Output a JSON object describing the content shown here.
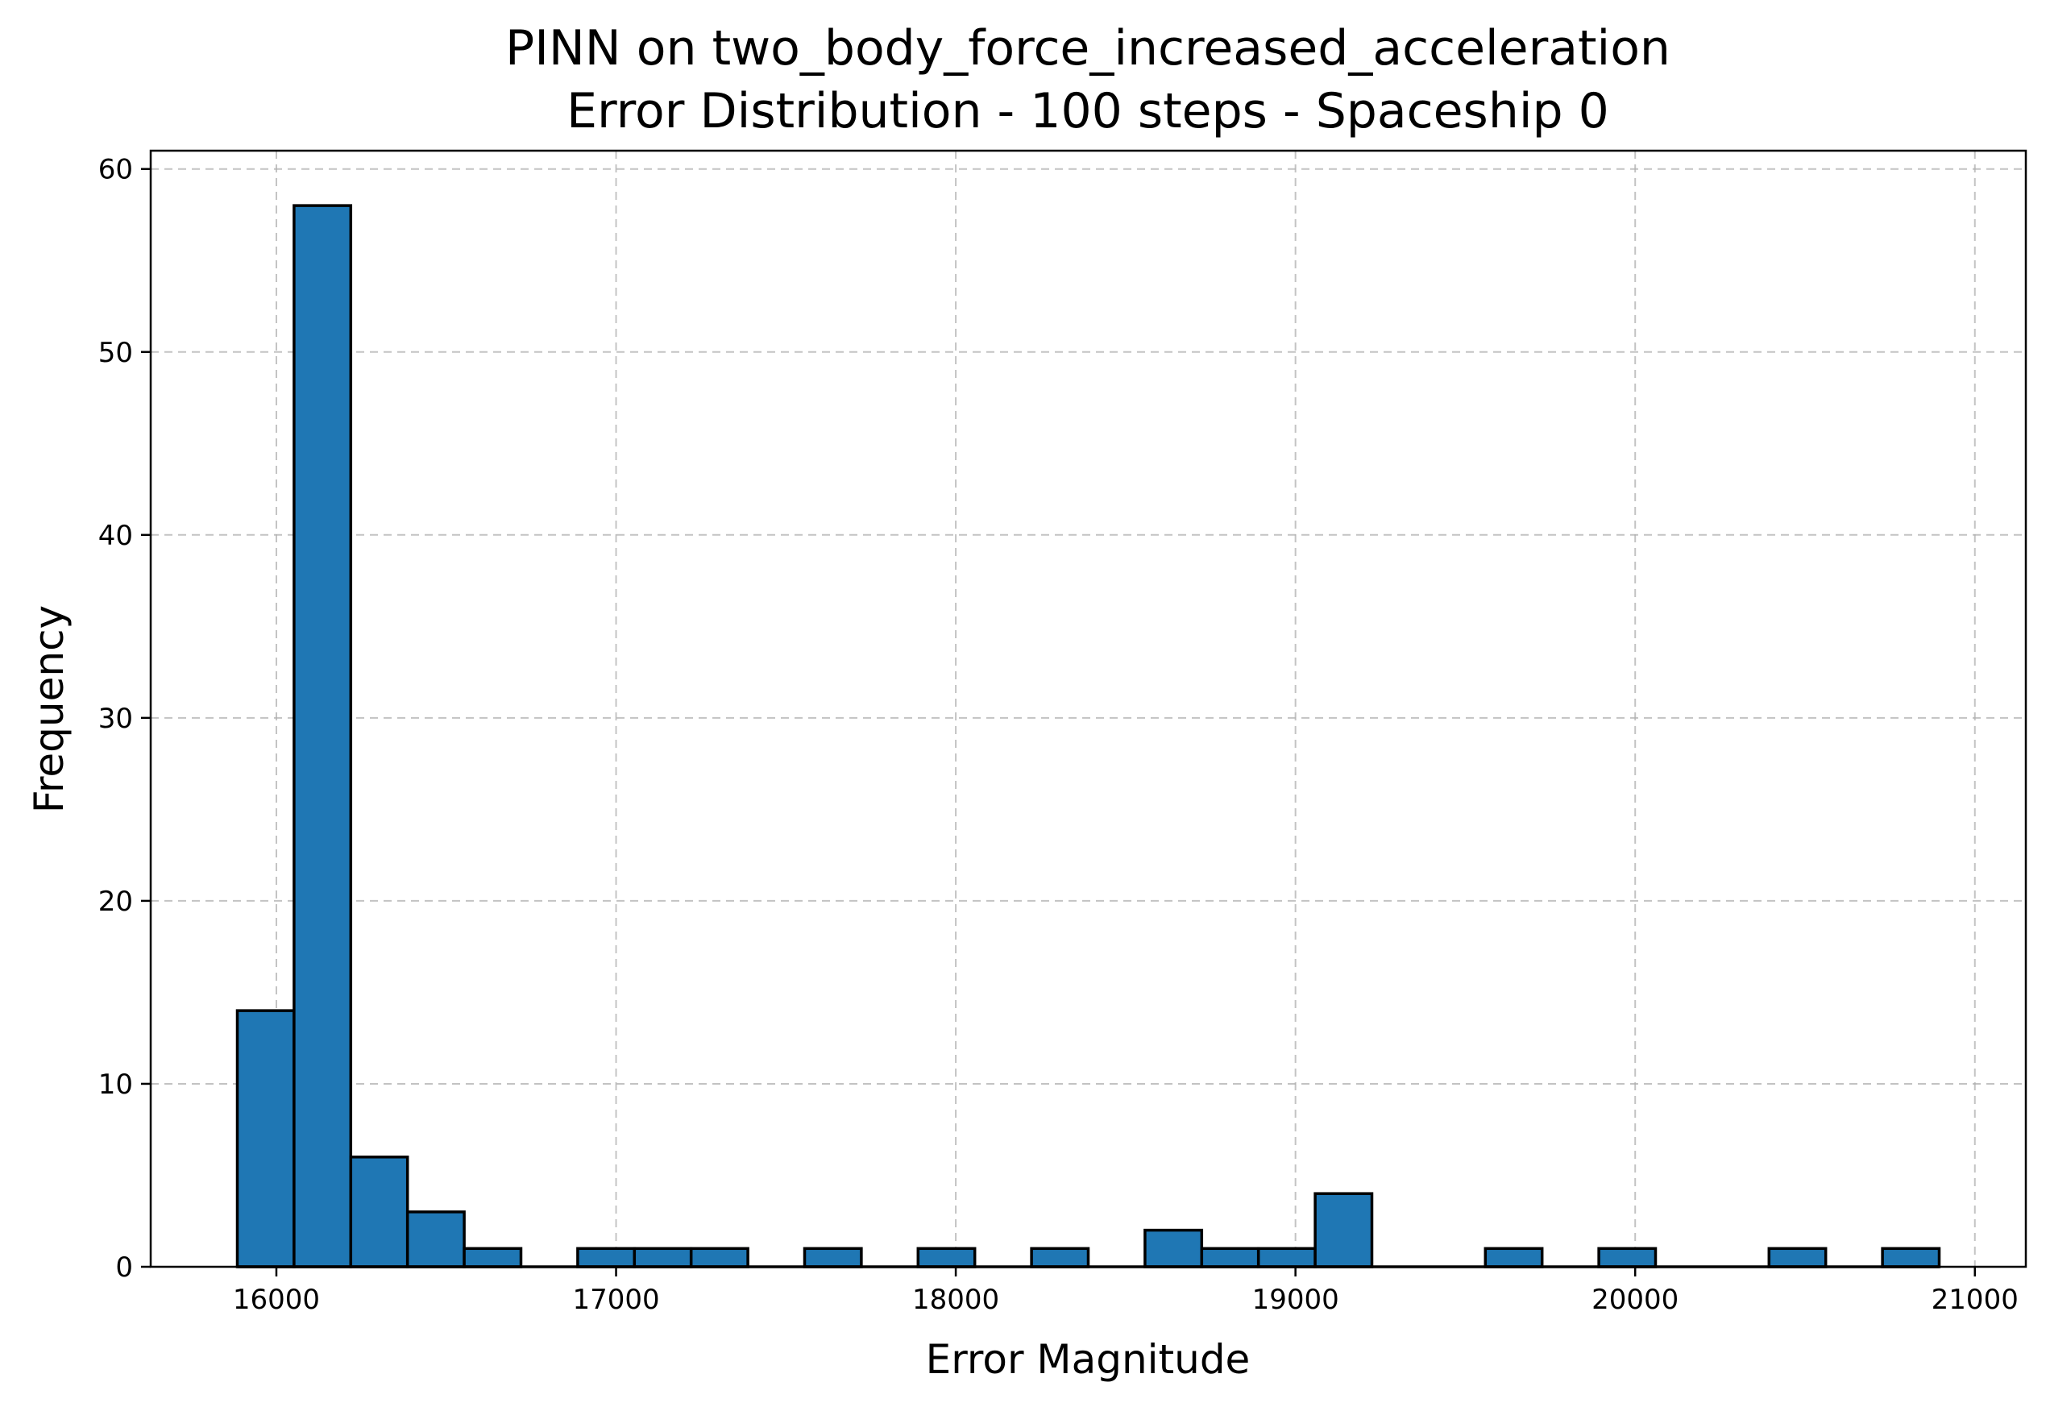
{
  "chart_data": {
    "type": "bar",
    "title_line1": "PINN on two_body_force_increased_acceleration",
    "title_line2": "Error Distribution - 100 steps - Spaceship 0",
    "xlabel": "Error Magnitude",
    "ylabel": "Frequency",
    "xlim": [
      15630,
      21150
    ],
    "ylim": [
      0,
      61
    ],
    "x_ticks": [
      16000,
      17000,
      18000,
      19000,
      20000,
      21000
    ],
    "y_ticks": [
      0,
      10,
      20,
      30,
      40,
      50,
      60
    ],
    "grid": true,
    "bar_color": "#1f77b4",
    "edge_color": "#000000",
    "bin_start": 15885,
    "bin_width": 167,
    "counts": [
      14,
      58,
      6,
      3,
      1,
      0,
      1,
      1,
      1,
      0,
      1,
      0,
      1,
      0,
      1,
      0,
      2,
      1,
      1,
      4,
      0,
      0,
      1,
      0,
      1,
      0,
      0,
      1,
      0,
      1
    ]
  }
}
